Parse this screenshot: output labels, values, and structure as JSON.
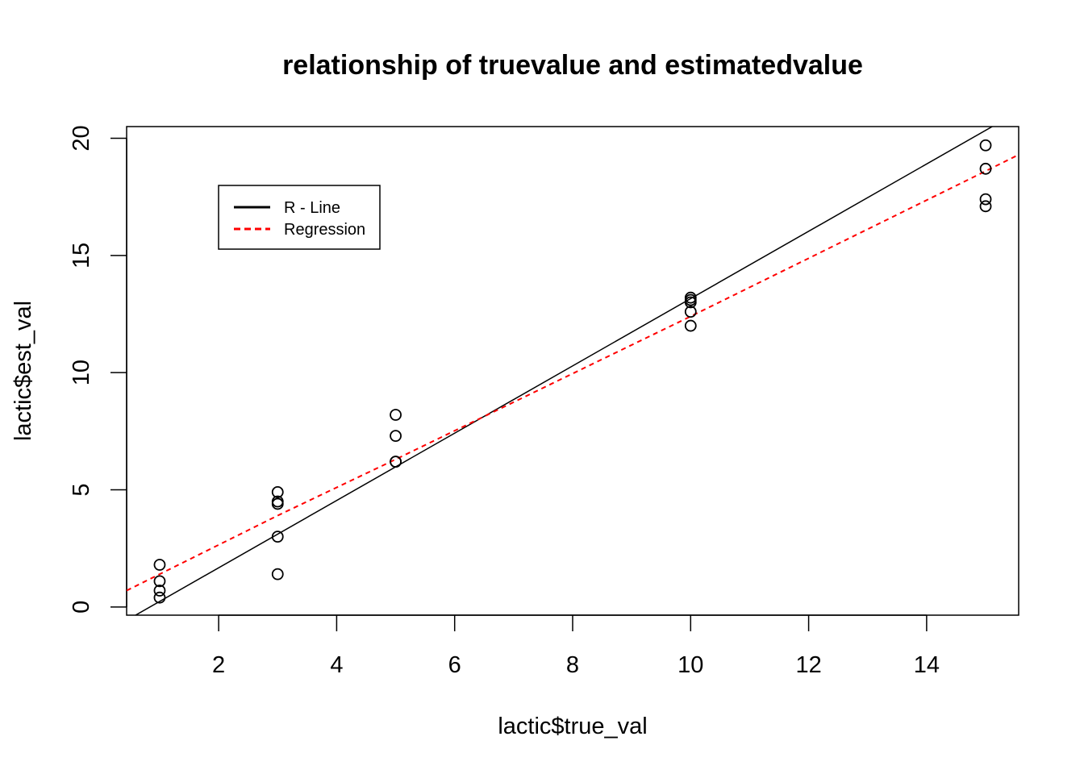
{
  "chart_data": {
    "type": "scatter",
    "title": "relationship of truevalue and estimatedvalue",
    "xlabel": "lactic$true_val",
    "ylabel": "lactic$est_val",
    "xlim": [
      0.44,
      15.56
    ],
    "ylim": [
      -0.35,
      20.5
    ],
    "xticks": [
      2,
      4,
      6,
      8,
      10,
      12,
      14
    ],
    "yticks": [
      0,
      5,
      10,
      15,
      20
    ],
    "grid": false,
    "legend_position": "top-left",
    "points": {
      "x": [
        1,
        1,
        1,
        1,
        3,
        3,
        3,
        3,
        3,
        5,
        5,
        5,
        5,
        10,
        10,
        10,
        10,
        10,
        15,
        15,
        15,
        15
      ],
      "y": [
        1.8,
        1.1,
        0.7,
        0.4,
        4.9,
        4.5,
        4.4,
        3.0,
        1.4,
        8.2,
        7.3,
        6.2,
        6.2,
        13.2,
        13.1,
        12.6,
        12.0,
        13.0,
        19.7,
        18.7,
        17.4,
        17.1
      ]
    },
    "lines": [
      {
        "name": "R - Line",
        "color": "#000000",
        "style": "solid",
        "intercept": -1.2,
        "slope": 1.436
      },
      {
        "name": "Regression",
        "color": "#ff0000",
        "style": "dashed",
        "x": [
          0.44,
          1,
          3,
          5,
          10,
          15,
          15.56
        ],
        "y": [
          0.7,
          1.4,
          3.9,
          6.3,
          12.4,
          18.6,
          19.3
        ]
      }
    ]
  }
}
